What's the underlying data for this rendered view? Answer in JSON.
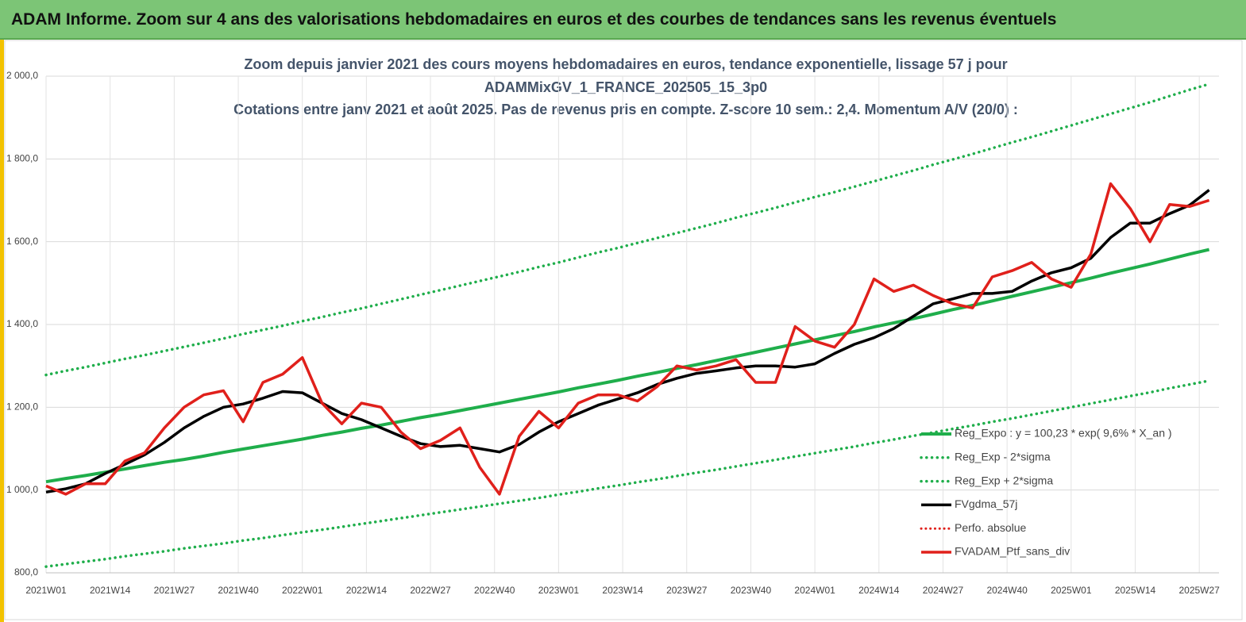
{
  "header_title": "ADAM Informe. Zoom sur 4 ans des valorisations hebdomadaires en euros et des courbes de tendances sans les revenus éventuels",
  "chart_data": {
    "type": "line",
    "title": [
      "Zoom depuis janvier 2021 des cours moyens hebdomadaires  en euros, tendance exponentielle, lissage 57 j pour",
      "ADAMMixGV_1_FRANCE_202505_15_3p0",
      "Cotations entre janv 2021 et août 2025. Pas de revenus pris en compte. Z-score 10 sem.: 2,4. Momentum A/V (20/0) :"
    ],
    "x": [
      0,
      4,
      8,
      12,
      16,
      20,
      24,
      28,
      32,
      36,
      40,
      44,
      48,
      52,
      56,
      60,
      64,
      68,
      72,
      76,
      80,
      84,
      88,
      92,
      96,
      100,
      104,
      108,
      112,
      116,
      120,
      124,
      128,
      132,
      136,
      140,
      144,
      148,
      152,
      156,
      160,
      164,
      168,
      172,
      176,
      180,
      184,
      188,
      192,
      196,
      200,
      204,
      208,
      212,
      216,
      220,
      224,
      228,
      232,
      236
    ],
    "xlim": [
      0,
      238
    ],
    "xticks": [
      {
        "value": 0,
        "label": "2021W01"
      },
      {
        "value": 13,
        "label": "2021W14"
      },
      {
        "value": 26,
        "label": "2021W27"
      },
      {
        "value": 39,
        "label": "2021W40"
      },
      {
        "value": 52,
        "label": "2022W01"
      },
      {
        "value": 65,
        "label": "2022W14"
      },
      {
        "value": 78,
        "label": "2022W27"
      },
      {
        "value": 91,
        "label": "2022W40"
      },
      {
        "value": 104,
        "label": "2023W01"
      },
      {
        "value": 117,
        "label": "2023W14"
      },
      {
        "value": 130,
        "label": "2023W27"
      },
      {
        "value": 143,
        "label": "2023W40"
      },
      {
        "value": 156,
        "label": "2024W01"
      },
      {
        "value": 169,
        "label": "2024W14"
      },
      {
        "value": 182,
        "label": "2024W27"
      },
      {
        "value": 195,
        "label": "2024W40"
      },
      {
        "value": 208,
        "label": "2025W01"
      },
      {
        "value": 221,
        "label": "2025W14"
      },
      {
        "value": 234,
        "label": "2025W27"
      }
    ],
    "ylim": [
      800,
      2000
    ],
    "yticks": [
      {
        "value": 800,
        "label": "800,0"
      },
      {
        "value": 1000,
        "label": "1 000,0"
      },
      {
        "value": 1200,
        "label": "1 200,0"
      },
      {
        "value": 1400,
        "label": "1 400,0"
      },
      {
        "value": 1600,
        "label": "1 600,0"
      },
      {
        "value": 1800,
        "label": "1 800,0"
      },
      {
        "value": 2000,
        "label": "2 000,0"
      }
    ],
    "grid": true,
    "legend_position": "lower right",
    "series": [
      {
        "name": "Reg_Expo : y = 100,23 * exp( 9,6% *  X_an )",
        "color": "#1fae4b",
        "dash": "solid",
        "width": 4,
        "values": [
          1020,
          1028,
          1035,
          1043,
          1051,
          1059,
          1067,
          1074,
          1082,
          1091,
          1099,
          1107,
          1115,
          1123,
          1132,
          1140,
          1149,
          1157,
          1166,
          1175,
          1183,
          1192,
          1201,
          1210,
          1219,
          1228,
          1237,
          1247,
          1256,
          1265,
          1275,
          1284,
          1294,
          1303,
          1313,
          1323,
          1333,
          1343,
          1353,
          1363,
          1373,
          1383,
          1394,
          1404,
          1414,
          1425,
          1436,
          1446,
          1457,
          1468,
          1479,
          1490,
          1501,
          1512,
          1524,
          1535,
          1546,
          1558,
          1570,
          1581
        ]
      },
      {
        "name": "Reg_Exp - 2*sigma",
        "color": "#1fae4b",
        "dash": "dotted",
        "width": 3.5,
        "values": [
          815,
          821,
          827,
          833,
          840,
          846,
          852,
          859,
          865,
          871,
          878,
          884,
          891,
          898,
          904,
          911,
          918,
          925,
          932,
          939,
          946,
          953,
          960,
          967,
          974,
          981,
          989,
          996,
          1004,
          1011,
          1019,
          1026,
          1034,
          1042,
          1049,
          1057,
          1065,
          1073,
          1081,
          1089,
          1097,
          1105,
          1114,
          1122,
          1131,
          1139,
          1148,
          1156,
          1165,
          1173,
          1182,
          1191,
          1200,
          1209,
          1218,
          1227,
          1236,
          1246,
          1255,
          1264
        ]
      },
      {
        "name": "Reg_Exp + 2*sigma",
        "color": "#1fae4b",
        "dash": "dotted",
        "width": 3.5,
        "values": [
          1278,
          1288,
          1297,
          1307,
          1317,
          1326,
          1336,
          1346,
          1356,
          1366,
          1377,
          1387,
          1397,
          1408,
          1418,
          1429,
          1439,
          1450,
          1461,
          1472,
          1483,
          1494,
          1505,
          1516,
          1527,
          1539,
          1550,
          1562,
          1574,
          1585,
          1597,
          1609,
          1621,
          1633,
          1645,
          1658,
          1670,
          1682,
          1695,
          1708,
          1720,
          1733,
          1746,
          1759,
          1772,
          1786,
          1799,
          1812,
          1826,
          1840,
          1853,
          1867,
          1881,
          1895,
          1909,
          1923,
          1937,
          1952,
          1967,
          1981
        ]
      },
      {
        "name": "FVgdma_57j",
        "color": "#000000",
        "dash": "solid",
        "width": 3.5,
        "values": [
          995,
          1003,
          1015,
          1040,
          1062,
          1085,
          1115,
          1150,
          1178,
          1200,
          1208,
          1222,
          1238,
          1235,
          1210,
          1185,
          1170,
          1150,
          1130,
          1112,
          1105,
          1108,
          1100,
          1092,
          1110,
          1140,
          1165,
          1185,
          1205,
          1220,
          1235,
          1255,
          1270,
          1282,
          1288,
          1295,
          1300,
          1300,
          1297,
          1305,
          1330,
          1352,
          1368,
          1390,
          1420,
          1450,
          1462,
          1475,
          1475,
          1480,
          1505,
          1525,
          1537,
          1560,
          1610,
          1645,
          1645,
          1668,
          1688,
          1725
        ]
      },
      {
        "name": "Perfo. absolue",
        "color": "#e0201b",
        "dash": "dotted",
        "width": 3,
        "values": [
          null,
          null,
          null,
          null,
          null,
          null,
          null,
          null,
          null,
          null,
          null,
          null,
          null,
          null,
          null,
          null,
          null,
          null,
          null,
          null,
          null,
          null,
          null,
          null,
          null,
          null,
          null,
          null,
          null,
          null,
          null,
          null,
          null,
          null,
          null,
          null,
          null,
          null,
          null,
          null,
          null,
          null,
          null,
          null,
          null,
          null,
          null,
          null,
          null,
          null,
          null,
          null,
          null,
          null,
          null,
          null,
          null,
          null,
          null,
          null
        ]
      },
      {
        "name": "FVADAM_Ptf_sans_div",
        "color": "#e0201b",
        "dash": "solid",
        "width": 3.5,
        "values": [
          1010,
          990,
          1015,
          1015,
          1070,
          1090,
          1150,
          1200,
          1230,
          1240,
          1165,
          1260,
          1280,
          1320,
          1210,
          1160,
          1210,
          1200,
          1140,
          1100,
          1120,
          1150,
          1055,
          990,
          1130,
          1190,
          1150,
          1210,
          1230,
          1230,
          1215,
          1250,
          1300,
          1290,
          1300,
          1315,
          1260,
          1260,
          1395,
          1360,
          1345,
          1400,
          1510,
          1480,
          1495,
          1470,
          1450,
          1440,
          1515,
          1530,
          1550,
          1510,
          1490,
          1570,
          1740,
          1680,
          1600,
          1690,
          1685,
          1700
        ]
      }
    ]
  }
}
